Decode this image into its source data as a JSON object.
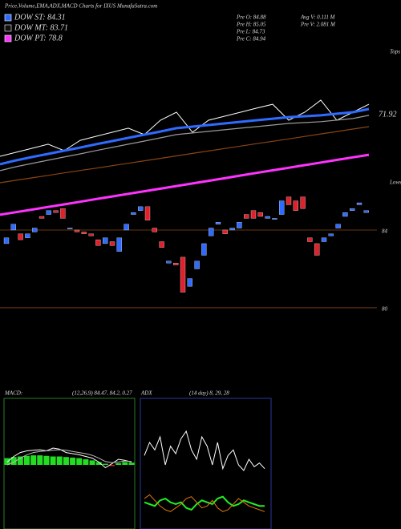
{
  "header": {
    "title": "Price,Volume,EMA,ADX,MACD Charts for IXUS MunafaSutra.com",
    "legend": [
      {
        "label": "DOW ST: 84.31",
        "color": "#2f6bff"
      },
      {
        "label": "DOW MT: 83.71",
        "color": "#111111"
      },
      {
        "label": "DOW PT: 78.8",
        "color": "#ff33ff"
      }
    ],
    "info": [
      "Pre  O: 84.88",
      "Pre  H: 85.05",
      "Pre  L: 84.73",
      "Pre  C: 84.94",
      "Avg V: 0.111 M",
      "Pre  V: 2.081 M"
    ]
  },
  "chart_data": [
    {
      "type": "line",
      "ylim": [
        64,
        74
      ],
      "annotations": [
        "Tops",
        "71.92"
      ],
      "series": [
        {
          "color": "#ffffff",
          "values": [
            68.72,
            69.0,
            69.28,
            69.56,
            69.11,
            69.83,
            70.11,
            70.39,
            70.67,
            70.22,
            71.22,
            71.78,
            70.39,
            71.22,
            71.5,
            71.78,
            72.06,
            72.33,
            71.22,
            71.78,
            72.61,
            71.22,
            71.78,
            72.33
          ]
        },
        {
          "color": "#2f6bff",
          "values": [
            68.17,
            68.44,
            68.67,
            68.89,
            69.11,
            69.33,
            69.56,
            69.78,
            70.0,
            70.22,
            70.44,
            70.67,
            70.78,
            70.89,
            71.0,
            71.11,
            71.22,
            71.33,
            71.44,
            71.5,
            71.56,
            71.67,
            71.78,
            72.0
          ]
        },
        {
          "color": "#9a9a9a",
          "values": [
            67.73,
            68.0,
            68.23,
            68.45,
            68.67,
            68.89,
            69.12,
            69.34,
            69.56,
            69.78,
            70.0,
            70.23,
            70.34,
            70.45,
            70.56,
            70.67,
            70.78,
            70.89,
            71.0,
            71.06,
            71.12,
            71.23,
            71.34,
            71.56
          ]
        },
        {
          "color": "#8b4513",
          "values": [
            66.89,
            67.06,
            67.23,
            67.4,
            67.57,
            67.74,
            67.9,
            68.07,
            68.24,
            68.41,
            68.58,
            68.75,
            68.92,
            69.09,
            69.26,
            69.43,
            69.6,
            69.76,
            69.93,
            70.1,
            70.27,
            70.44,
            70.61,
            70.78
          ]
        },
        {
          "color": "#ff33ff",
          "values": [
            64.67,
            64.85,
            65.03,
            65.21,
            65.39,
            65.57,
            65.76,
            65.94,
            66.12,
            66.3,
            66.48,
            66.66,
            66.84,
            67.02,
            67.2,
            67.39,
            67.57,
            67.75,
            67.93,
            68.11,
            68.29,
            68.47,
            68.65,
            68.83
          ]
        }
      ]
    },
    {
      "type": "candlestick",
      "ylim": [
        79.75,
        86.35
      ],
      "yticks": [
        80,
        84
      ],
      "annotations": [
        "Lows"
      ],
      "up_color": "#2f6bff",
      "down_color": "#e0202a",
      "open": [
        83.3,
        84.0,
        83.8,
        83.6,
        83.9,
        84.7,
        84.8,
        85.0,
        85.1,
        84.1,
        84.0,
        83.9,
        83.8,
        83.5,
        83.3,
        83.4,
        82.9,
        84.0,
        84.8,
        85.0,
        85.2,
        84.1,
        83.4,
        82.3,
        82.3,
        82.6,
        81.1,
        82.0,
        82.7,
        83.7,
        84.3,
        84.0,
        84.0,
        84.1,
        84.8,
        85.0,
        84.9,
        84.6,
        84.6,
        84.8,
        85.7,
        85.5,
        85.7,
        83.6,
        83.3,
        83.4,
        83.7,
        84.1,
        84.7,
        85.0,
        85.3,
        84.9
      ],
      "close": [
        83.6,
        84.3,
        83.5,
        83.8,
        84.1,
        84.6,
        85.0,
        84.9,
        84.6,
        84.1,
        83.9,
        83.8,
        83.7,
        83.2,
        83.6,
        83.2,
        83.6,
        84.3,
        84.9,
        85.2,
        84.5,
        83.9,
        83.1,
        82.4,
        82.2,
        80.8,
        81.5,
        82.4,
        83.3,
        84.1,
        84.4,
        83.8,
        84.1,
        84.4,
        84.6,
        84.6,
        84.7,
        84.7,
        84.6,
        85.5,
        85.3,
        85.0,
        85.1,
        83.4,
        82.7,
        83.6,
        83.8,
        84.3,
        84.9,
        85.1,
        85.4,
        85.0
      ]
    },
    {
      "type": "macd",
      "title": "MACD:",
      "params": "(12,26,9) 84.47, 84.2, 0.27",
      "ylim": [
        -1,
        1
      ],
      "bar_color": "#22dd22",
      "histogram": [
        0.12,
        0.14,
        0.15,
        0.16,
        0.17,
        0.17,
        0.16,
        0.15,
        0.15,
        0.14,
        0.13,
        0.12,
        0.1,
        0.08,
        0.05,
        0.02,
        -0.02,
        0.03,
        0.05,
        0.04
      ],
      "series": [
        {
          "color": "#ffffff",
          "values": [
            0.05,
            0.15,
            0.22,
            0.25,
            0.26,
            0.27,
            0.25,
            0.3,
            0.28,
            0.22,
            0.2,
            0.18,
            0.15,
            0.12,
            0.05,
            -0.05,
            0.02,
            0.1,
            0.08,
            0.05
          ]
        },
        {
          "color": "#bbbbbb",
          "values": [
            0.0,
            0.05,
            0.12,
            0.18,
            0.22,
            0.24,
            0.25,
            0.26,
            0.27,
            0.26,
            0.24,
            0.22,
            0.2,
            0.17,
            0.12,
            0.06,
            0.04,
            0.05,
            0.07,
            0.06
          ]
        }
      ]
    },
    {
      "type": "adx",
      "title": "ADX",
      "params": "(14 day) 8, 29, 28",
      "ylim": [
        0,
        60
      ],
      "series": [
        {
          "color": "#ffffff",
          "values": [
            35,
            42,
            38,
            45,
            30,
            40,
            36,
            44,
            48,
            38,
            33,
            45,
            40,
            30,
            42,
            28,
            35,
            38,
            30,
            27,
            33,
            29,
            31,
            28
          ]
        },
        {
          "color": "#22ee22",
          "values": [
            10,
            9,
            8,
            11,
            12,
            10,
            9,
            10,
            7,
            6,
            9,
            11,
            10,
            9,
            12,
            13,
            10,
            8,
            9,
            11,
            10,
            9,
            8,
            8
          ]
        },
        {
          "color": "#e07a10",
          "values": [
            12,
            14,
            11,
            8,
            6,
            5,
            7,
            9,
            12,
            13,
            10,
            7,
            8,
            11,
            7,
            5,
            6,
            9,
            12,
            10,
            8,
            7,
            6,
            5
          ]
        }
      ]
    }
  ]
}
